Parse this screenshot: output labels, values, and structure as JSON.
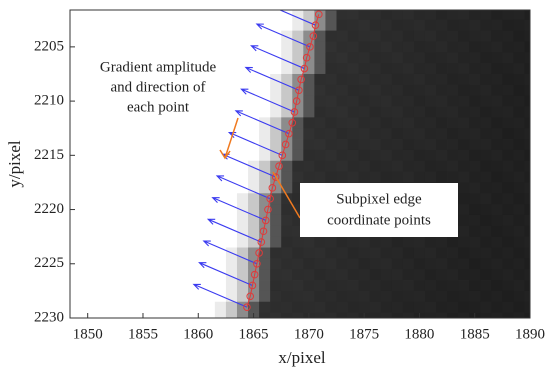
{
  "chart_data": {
    "type": "scatter",
    "xlabel": "x/pixel",
    "ylabel": "y/pixel",
    "xlim": [
      1848.4,
      1890
    ],
    "ylim": [
      2201.6,
      2230
    ],
    "y_reversed": true,
    "xticks": [
      1850,
      1855,
      1860,
      1865,
      1870,
      1875,
      1880,
      1885,
      1890
    ],
    "yticks": [
      2205,
      2210,
      2215,
      2220,
      2225,
      2230
    ],
    "edge_points": {
      "color": "#e03a3a",
      "x": [
        1870.9,
        1870.6,
        1870.4,
        1870.1,
        1869.8,
        1869.6,
        1869.3,
        1869.1,
        1868.9,
        1868.7,
        1868.5,
        1868.2,
        1867.9,
        1867.6,
        1867.3,
        1867.0,
        1866.7,
        1866.5,
        1866.3,
        1866.1,
        1865.9,
        1865.7,
        1865.5,
        1865.3,
        1865.1,
        1864.9,
        1864.7,
        1864.4
      ],
      "y": [
        2202,
        2203,
        2204,
        2205,
        2206,
        2207,
        2208,
        2209,
        2210,
        2211,
        2212,
        2213,
        2214,
        2215,
        2216,
        2217,
        2218,
        2219,
        2220,
        2221,
        2222,
        2223,
        2224,
        2225,
        2226,
        2227,
        2228,
        2229
      ]
    },
    "arrows": {
      "color": "#3b3bf0",
      "x": [
        1870.6,
        1870.1,
        1869.6,
        1869.1,
        1868.7,
        1868.2,
        1867.6,
        1867.0,
        1866.5,
        1866.1,
        1865.7,
        1865.3,
        1864.9,
        1864.4
      ],
      "y": [
        2203,
        2205,
        2207,
        2209,
        2211,
        2213,
        2215,
        2217,
        2219,
        2221,
        2223,
        2225,
        2227,
        2229
      ],
      "u": [
        -4.8,
        -4.8,
        -4.8,
        -4.8,
        -4.8,
        -4.8,
        -4.8,
        -4.8,
        -4.8,
        -4.8,
        -4.8,
        -4.8,
        -4.8,
        -4.8
      ],
      "v": [
        -2.1,
        -2.1,
        -2.1,
        -2.1,
        -2.1,
        -2.1,
        -2.1,
        -2.1,
        -2.1,
        -2.1,
        -2.1,
        -2.1,
        -2.1,
        -2.1
      ]
    },
    "annotations": [
      {
        "lines": [
          "Gradient amplitude",
          "and direction of",
          "each point"
        ],
        "color": "#f07a20"
      },
      {
        "lines": [
          "Subpixel edge",
          "coordinate points"
        ],
        "color": "#f07a20"
      }
    ]
  }
}
